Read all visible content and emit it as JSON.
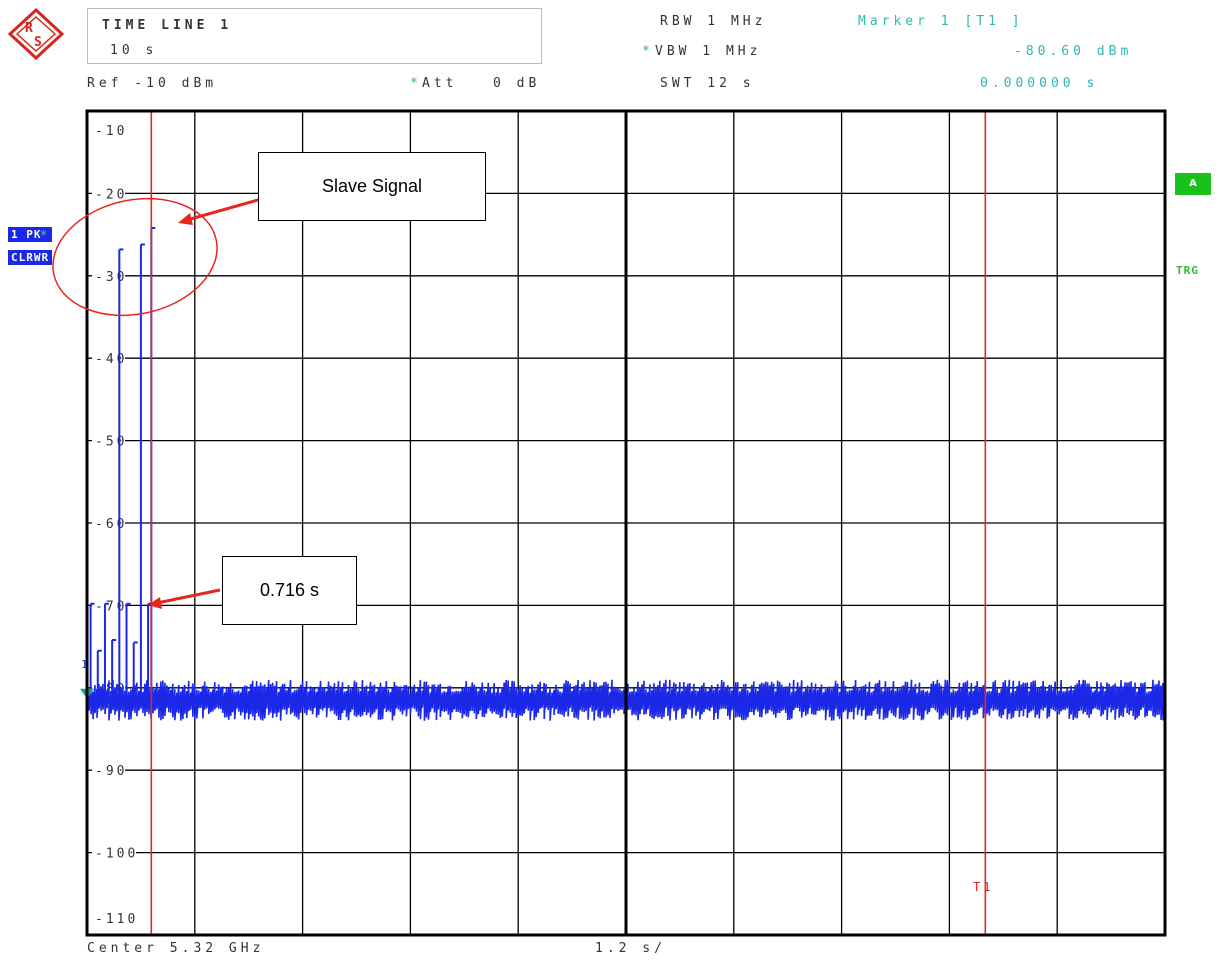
{
  "header": {
    "title": "TIME LINE 1",
    "subtitle": "10 s",
    "rbw": "RBW 1 MHz",
    "vbw": "VBW 1 MHz",
    "swt": "SWT 12 s",
    "ref": "Ref -10 dBm",
    "att": "Att   0 dB",
    "marker_label": "Marker 1 [T1 ]",
    "marker_level": "-80.60 dBm",
    "marker_time": "0.000000 s",
    "star": "*"
  },
  "footer": {
    "center": "Center 5.32 GHz",
    "span": "1.2 s/"
  },
  "side": {
    "trace_id": "1 PK",
    "trace_mode": "CLRWR",
    "tag_a": "A",
    "tag_trg": "TRG"
  },
  "annotations": {
    "slave_signal": "Slave Signal",
    "time_value": "0.716 s",
    "t1_label": "T1",
    "marker_num": "1"
  },
  "colors": {
    "trace": "#1b28e8",
    "marker_line": "#e8261e",
    "trace_tag": "#1b28e8",
    "tag_a": "#18c21b",
    "trg": "#28c028",
    "cyan_text": "#2fb7b0"
  },
  "chart_data": {
    "type": "line",
    "title": "TIME LINE 1",
    "xlabel": "",
    "ylabel": "",
    "xlim": [
      0,
      12
    ],
    "ylim": [
      -110,
      -10
    ],
    "grid": true,
    "y_ticks": [
      -10,
      -20,
      -30,
      -40,
      -50,
      -60,
      -70,
      -80,
      -90,
      -100,
      -110
    ],
    "y_tick_labels": [
      "-10",
      "-20",
      "-30",
      "-40",
      "-50",
      "-60",
      "-70",
      "-80",
      "-90",
      "-100",
      "-110"
    ],
    "noise_floor_dbm": -81.5,
    "series": [
      {
        "x": [
          0.04,
          0.12,
          0.2,
          0.28,
          0.36,
          0.44,
          0.52,
          0.6,
          0.68,
          0.716
        ],
        "y": [
          -69.8,
          -75.5,
          -69.8,
          -74.2,
          -26.8,
          -69.8,
          -74.5,
          -26.2,
          -69.8,
          -24.2
        ]
      }
    ],
    "markers": [
      {
        "label": "1",
        "x": 0.0,
        "y": -80.6
      }
    ],
    "vertical_lines": [
      {
        "x": 0.716
      },
      {
        "label": "T1",
        "x": 10.0
      }
    ]
  }
}
